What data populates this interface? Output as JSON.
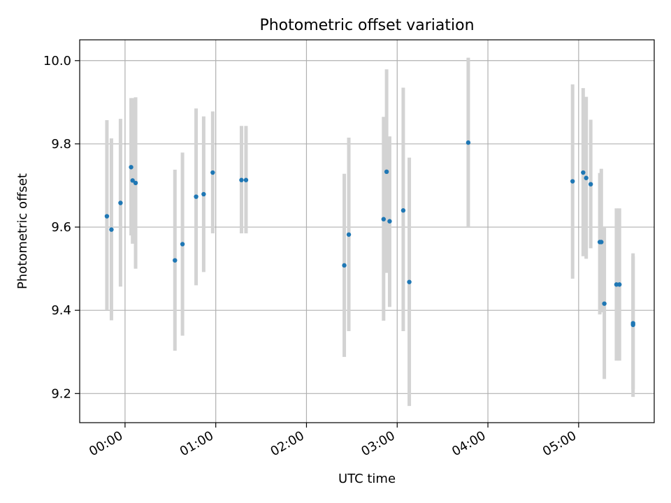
{
  "chart_data": {
    "type": "scatter",
    "title": "Photometric offset variation",
    "xlabel": "UTC time",
    "ylabel": "Photometric offset",
    "xlim": [
      "23:30",
      "05:50"
    ],
    "ylim": [
      9.13,
      10.05
    ],
    "x_ticks": [
      "00:00",
      "01:00",
      "02:00",
      "03:00",
      "04:00",
      "05:00"
    ],
    "y_ticks": [
      "9.2",
      "9.4",
      "9.6",
      "9.8",
      "10.0"
    ],
    "grid": true,
    "colors": {
      "point": "#1f77b4",
      "errorbar": "#d3d3d3",
      "grid": "#b0b0b0"
    },
    "series": [
      {
        "points": [
          {
            "x": "23:48",
            "y": 9.626,
            "lo": 9.4,
            "hi": 9.857
          },
          {
            "x": "23:51",
            "y": 9.594,
            "lo": 9.376,
            "hi": 9.813
          },
          {
            "x": "23:57",
            "y": 9.658,
            "lo": 9.457,
            "hi": 9.86
          },
          {
            "x": "00:04",
            "y": 9.744,
            "lo": 9.58,
            "hi": 9.91
          },
          {
            "x": "00:05",
            "y": 9.712,
            "lo": 9.56,
            "hi": 9.91
          },
          {
            "x": "00:07",
            "y": 9.706,
            "lo": 9.5,
            "hi": 9.912
          },
          {
            "x": "00:33",
            "y": 9.52,
            "lo": 9.303,
            "hi": 9.738
          },
          {
            "x": "00:38",
            "y": 9.559,
            "lo": 9.339,
            "hi": 9.779
          },
          {
            "x": "00:47",
            "y": 9.673,
            "lo": 9.46,
            "hi": 9.885
          },
          {
            "x": "00:52",
            "y": 9.679,
            "lo": 9.492,
            "hi": 9.866
          },
          {
            "x": "00:58",
            "y": 9.731,
            "lo": 9.585,
            "hi": 9.878
          },
          {
            "x": "01:17",
            "y": 9.713,
            "lo": 9.585,
            "hi": 9.843
          },
          {
            "x": "01:20",
            "y": 9.713,
            "lo": 9.585,
            "hi": 9.843
          },
          {
            "x": "02:25",
            "y": 9.508,
            "lo": 9.288,
            "hi": 9.728
          },
          {
            "x": "02:28",
            "y": 9.582,
            "lo": 9.35,
            "hi": 9.815
          },
          {
            "x": "02:51",
            "y": 9.619,
            "lo": 9.375,
            "hi": 9.865
          },
          {
            "x": "02:53",
            "y": 9.733,
            "lo": 9.49,
            "hi": 9.979
          },
          {
            "x": "02:55",
            "y": 9.614,
            "lo": 9.408,
            "hi": 9.818
          },
          {
            "x": "03:04",
            "y": 9.64,
            "lo": 9.35,
            "hi": 9.935
          },
          {
            "x": "03:08",
            "y": 9.468,
            "lo": 9.17,
            "hi": 9.767
          },
          {
            "x": "03:47",
            "y": 9.803,
            "lo": 9.6,
            "hi": 10.007
          },
          {
            "x": "04:56",
            "y": 9.71,
            "lo": 9.476,
            "hi": 9.943
          },
          {
            "x": "05:03",
            "y": 9.731,
            "lo": 9.53,
            "hi": 9.934
          },
          {
            "x": "05:05",
            "y": 9.718,
            "lo": 9.524,
            "hi": 9.913
          },
          {
            "x": "05:08",
            "y": 9.703,
            "lo": 9.549,
            "hi": 9.858
          },
          {
            "x": "05:14",
            "y": 9.564,
            "lo": 9.39,
            "hi": 9.73
          },
          {
            "x": "05:15",
            "y": 9.564,
            "lo": 9.395,
            "hi": 9.74
          },
          {
            "x": "05:17",
            "y": 9.416,
            "lo": 9.235,
            "hi": 9.6
          },
          {
            "x": "05:25",
            "y": 9.462,
            "lo": 9.279,
            "hi": 9.645
          },
          {
            "x": "05:27",
            "y": 9.462,
            "lo": 9.279,
            "hi": 9.645
          },
          {
            "x": "05:36",
            "y": 9.369,
            "lo": 9.21,
            "hi": 9.53
          },
          {
            "x": "05:36",
            "y": 9.365,
            "lo": 9.192,
            "hi": 9.537
          }
        ]
      }
    ]
  }
}
